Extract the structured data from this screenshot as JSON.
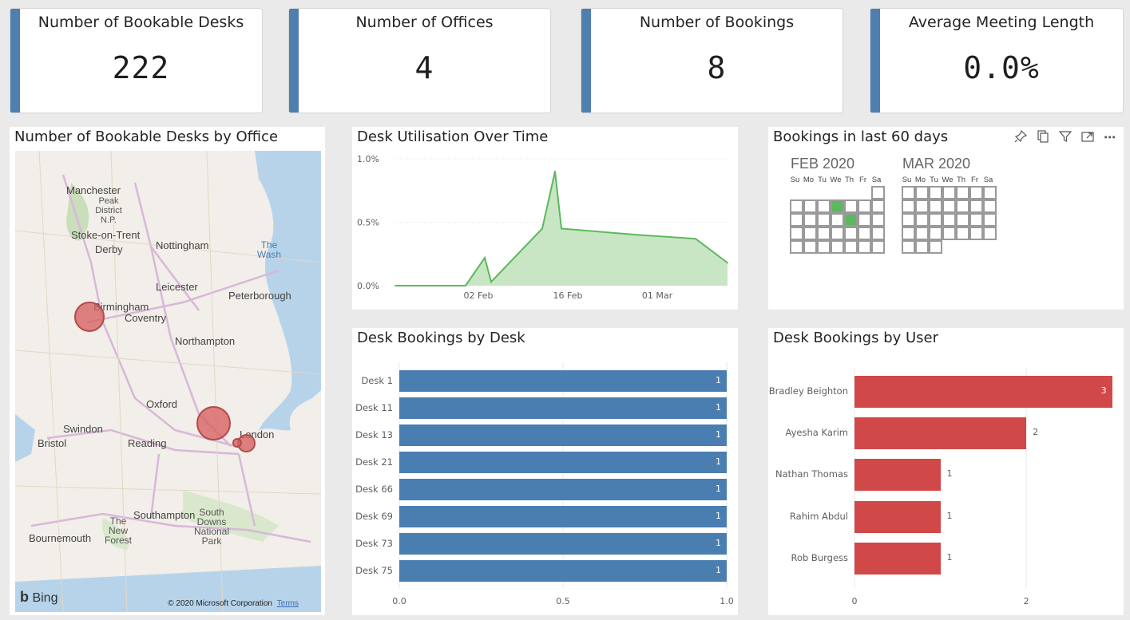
{
  "kpis": [
    {
      "title": "Number of Bookable Desks",
      "value": "222"
    },
    {
      "title": "Number of Offices",
      "value": "4"
    },
    {
      "title": "Number of Bookings",
      "value": "8"
    },
    {
      "title": "Average Meeting Length",
      "value": "0.0%"
    }
  ],
  "map_panel": {
    "title": "Number of Bookable Desks by Office",
    "cities": [
      "Manchester",
      "Peak District N.P.",
      "Stoke-on-Trent",
      "Nottingham",
      "Derby",
      "The Wash",
      "Leicester",
      "Peterborough",
      "Birmingham",
      "Coventry",
      "Northampton",
      "Oxford",
      "Swindon",
      "London",
      "Bristol",
      "Reading",
      "Southampton",
      "South Downs National Park",
      "The New Forest",
      "Bournemouth"
    ],
    "bing_label": "Bing",
    "copyright": "© 2020 Microsoft Corporation",
    "terms": "Terms"
  },
  "utilisation_panel": {
    "title": "Desk Utilisation Over Time"
  },
  "calendar_panel": {
    "title": "Bookings in last 60 days",
    "toolbar_icons": [
      "pin-icon",
      "copy-icon",
      "filter-icon",
      "focus-mode-icon",
      "more-options-icon"
    ],
    "months": [
      {
        "label": "FEB 2020",
        "highlighted_days": [
          5,
          13
        ]
      },
      {
        "label": "MAR 2020",
        "highlighted_days": []
      }
    ],
    "weekday_labels": [
      "Su",
      "Mo",
      "Tu",
      "We",
      "Th",
      "Fr",
      "Sa"
    ]
  },
  "desk_panel": {
    "title": "Desk Bookings by Desk"
  },
  "user_panel": {
    "title": "Desk Bookings by User"
  },
  "colors": {
    "kpi_accent": "#4f7fae",
    "desk_bar": "#4a7eb0",
    "user_bar": "#d04848",
    "area_line": "#5cb85c",
    "area_fill": "#c8e6c4",
    "calendar_highlight": "#5cb85c"
  },
  "chart_data": [
    {
      "type": "area",
      "title": "Desk Utilisation Over Time",
      "x": [
        "2020-01-20",
        "2020-01-31",
        "2020-02-03",
        "2020-02-04",
        "2020-02-12",
        "2020-02-14",
        "2020-02-15",
        "2020-02-27",
        "2020-03-07",
        "2020-03-12"
      ],
      "values": [
        0.0,
        0.0,
        0.22,
        0.03,
        0.45,
        0.9,
        0.45,
        0.4,
        0.37,
        0.18
      ],
      "yticks": [
        "0.0%",
        "0.5%",
        "1.0%"
      ],
      "ylim": [
        0,
        1.0
      ],
      "xticks": [
        {
          "label": "02 Feb",
          "date": "2020-02-02"
        },
        {
          "label": "16 Feb",
          "date": "2020-02-16"
        },
        {
          "label": "01 Mar",
          "date": "2020-03-01"
        }
      ],
      "xlim": [
        "2020-01-20",
        "2020-03-12"
      ]
    },
    {
      "type": "bar",
      "title": "Desk Bookings by Desk",
      "orientation": "horizontal",
      "categories": [
        "Desk 1",
        "Desk 11",
        "Desk 13",
        "Desk 21",
        "Desk 66",
        "Desk 69",
        "Desk 73",
        "Desk 75"
      ],
      "values": [
        1,
        1,
        1,
        1,
        1,
        1,
        1,
        1
      ],
      "data_labels": [
        "1",
        "1",
        "1",
        "1",
        "1",
        "1",
        "1",
        "1"
      ],
      "xticks": [
        "0.0",
        "0.5",
        "1.0"
      ],
      "xlim": [
        0,
        1
      ]
    },
    {
      "type": "bar",
      "title": "Desk Bookings by User",
      "orientation": "horizontal",
      "categories": [
        "Bradley Beighton",
        "Ayesha Karim",
        "Nathan Thomas",
        "Rahim Abdul",
        "Rob Burgess"
      ],
      "values": [
        3,
        2,
        1,
        1,
        1
      ],
      "data_labels": [
        "3",
        "2",
        "1",
        "1",
        "1"
      ],
      "xticks": [
        "0",
        "2"
      ],
      "xlim": [
        0,
        3.05
      ]
    }
  ]
}
